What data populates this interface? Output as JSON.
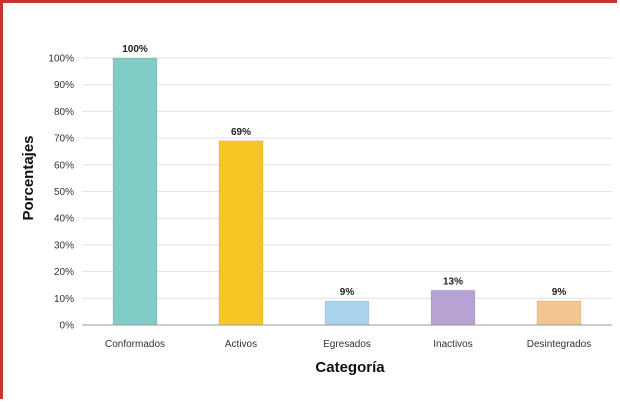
{
  "chart_data": {
    "type": "bar",
    "xlabel": "Categoría",
    "ylabel": "Porcentajes",
    "ylim": [
      0,
      100
    ],
    "yticks": [
      "0%",
      "10%",
      "20%",
      "30%",
      "40%",
      "50%",
      "60%",
      "70%",
      "80%",
      "90%",
      "100%"
    ],
    "categories": [
      "Conformados",
      "Activos",
      "Egresados",
      "Inactivos",
      "Desintegrados"
    ],
    "values": [
      100,
      69,
      9,
      13,
      9
    ],
    "data_labels": [
      "100%",
      "69%",
      "9%",
      "13%",
      "9%"
    ],
    "colors": [
      "#7fcdc6",
      "#f7c623",
      "#a9d3ee",
      "#b7a2d4",
      "#f2c692"
    ],
    "grid": true
  }
}
